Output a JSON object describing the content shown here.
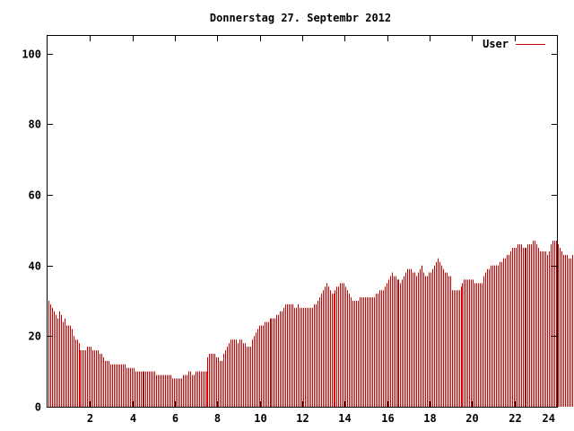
{
  "chart_data": {
    "type": "bar",
    "title": "Donnerstag 27. Septembr 2012",
    "xlabel": "",
    "ylabel": "",
    "xlim": [
      0,
      24
    ],
    "ylim": [
      0,
      105
    ],
    "xticks": [
      2,
      4,
      6,
      8,
      10,
      12,
      14,
      16,
      18,
      20,
      22,
      24
    ],
    "yticks": [
      0,
      20,
      40,
      60,
      80,
      100
    ],
    "grid": false,
    "legend_position": "top-right",
    "series": [
      {
        "name": "User",
        "color": "#cc0000",
        "points_per_hour": 12,
        "values": [
          30,
          29,
          28,
          27,
          26,
          25,
          27,
          26,
          24,
          25,
          23,
          23,
          23,
          22,
          20,
          19,
          19,
          18,
          16,
          16,
          16,
          16,
          17,
          17,
          17,
          16,
          16,
          16,
          16,
          15,
          15,
          14,
          13,
          13,
          13,
          12,
          12,
          12,
          12,
          12,
          12,
          12,
          12,
          12,
          11,
          11,
          11,
          11,
          11,
          10,
          10,
          10,
          10,
          10,
          10,
          10,
          10,
          10,
          10,
          10,
          10,
          9,
          9,
          9,
          9,
          9,
          9,
          9,
          9,
          9,
          8,
          8,
          8,
          8,
          8,
          8,
          9,
          9,
          9,
          10,
          10,
          9,
          9,
          10,
          10,
          10,
          10,
          10,
          10,
          10,
          14,
          15,
          15,
          15,
          15,
          14,
          14,
          13,
          13,
          15,
          16,
          17,
          18,
          19,
          19,
          19,
          19,
          18,
          19,
          19,
          18,
          18,
          17,
          17,
          17,
          19,
          20,
          21,
          22,
          23,
          23,
          23,
          24,
          24,
          24,
          25,
          25,
          25,
          25,
          26,
          26,
          27,
          27,
          28,
          29,
          29,
          29,
          29,
          29,
          28,
          28,
          29,
          28,
          28,
          28,
          28,
          28,
          28,
          28,
          28,
          29,
          29,
          30,
          31,
          32,
          33,
          34,
          35,
          34,
          33,
          32,
          32,
          33,
          34,
          34,
          35,
          35,
          35,
          34,
          33,
          32,
          31,
          30,
          30,
          30,
          30,
          31,
          31,
          31,
          31,
          31,
          31,
          31,
          31,
          31,
          32,
          32,
          33,
          33,
          33,
          34,
          35,
          36,
          37,
          38,
          37,
          37,
          36,
          36,
          35,
          36,
          37,
          38,
          39,
          39,
          39,
          38,
          38,
          37,
          38,
          39,
          40,
          38,
          37,
          37,
          38,
          38,
          39,
          40,
          41,
          42,
          41,
          40,
          39,
          38,
          38,
          37,
          37,
          33,
          33,
          33,
          33,
          33,
          34,
          35,
          36,
          36,
          36,
          36,
          36,
          36,
          35,
          35,
          35,
          35,
          35,
          37,
          38,
          39,
          39,
          40,
          40,
          40,
          40,
          40,
          41,
          41,
          42,
          42,
          43,
          43,
          44,
          45,
          45,
          45,
          46,
          46,
          46,
          45,
          45,
          45,
          46,
          46,
          46,
          47,
          47,
          46,
          45,
          44,
          44,
          44,
          44,
          43,
          44,
          46,
          47,
          47,
          47,
          46,
          45,
          44,
          43,
          43,
          43,
          42,
          42,
          43,
          43,
          41,
          41,
          41,
          40,
          40,
          39,
          38,
          38,
          38
        ]
      }
    ]
  }
}
